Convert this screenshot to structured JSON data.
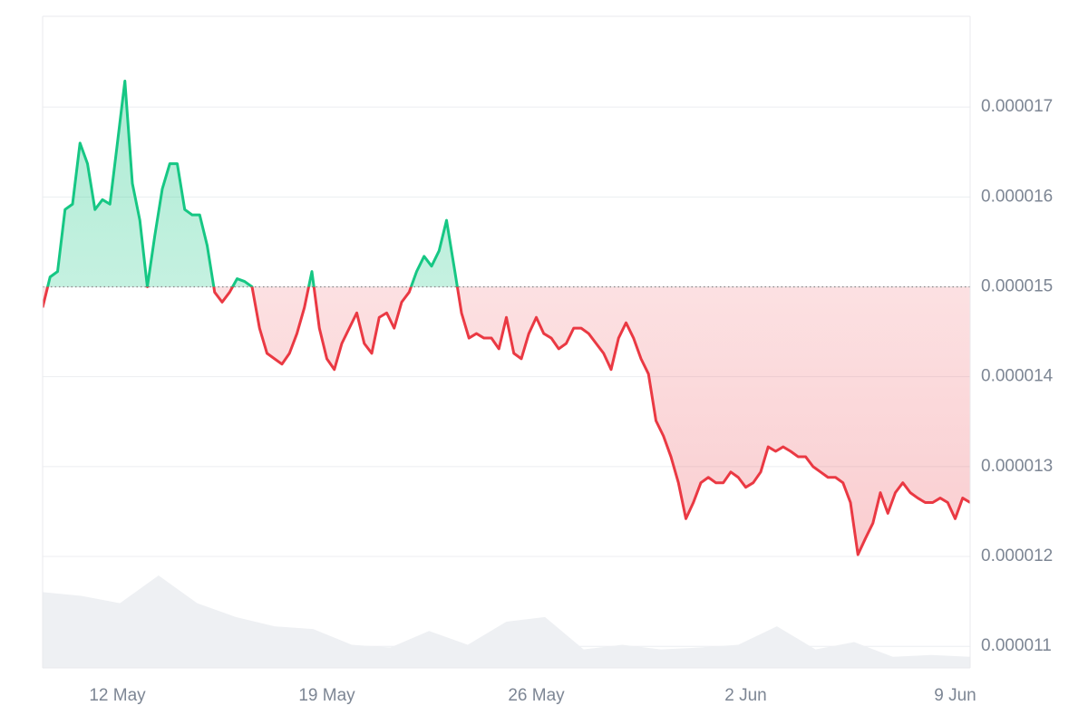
{
  "chart_data": {
    "type": "line",
    "series": [
      {
        "color_up": "#16c784",
        "color_down": "#ea3943",
        "values": [
          1.477e-05,
          1.511e-05,
          1.517e-05,
          1.586e-05,
          1.592e-05,
          1.66e-05,
          1.637e-05,
          1.586e-05,
          1.597e-05,
          1.592e-05,
          1.66e-05,
          1.729e-05,
          1.615e-05,
          1.574e-05,
          1.5e-05,
          1.557e-05,
          1.609e-05,
          1.637e-05,
          1.637e-05,
          1.586e-05,
          1.58e-05,
          1.58e-05,
          1.546e-05,
          1.494e-05,
          1.483e-05,
          1.494e-05,
          1.509e-05,
          1.506e-05,
          1.5e-05,
          1.454e-05,
          1.426e-05,
          1.42e-05,
          1.414e-05,
          1.426e-05,
          1.448e-05,
          1.477e-05,
          1.517e-05,
          1.454e-05,
          1.42e-05,
          1.408e-05,
          1.437e-05,
          1.454e-05,
          1.471e-05,
          1.437e-05,
          1.426e-05,
          1.466e-05,
          1.471e-05,
          1.454e-05,
          1.483e-05,
          1.494e-05,
          1.517e-05,
          1.534e-05,
          1.523e-05,
          1.54e-05,
          1.574e-05,
          1.523e-05,
          1.471e-05,
          1.443e-05,
          1.448e-05,
          1.443e-05,
          1.443e-05,
          1.431e-05,
          1.466e-05,
          1.426e-05,
          1.42e-05,
          1.448e-05,
          1.466e-05,
          1.448e-05,
          1.443e-05,
          1.431e-05,
          1.437e-05,
          1.454e-05,
          1.454e-05,
          1.448e-05,
          1.437e-05,
          1.426e-05,
          1.408e-05,
          1.443e-05,
          1.46e-05,
          1.443e-05,
          1.42e-05,
          1.403e-05,
          1.351e-05,
          1.334e-05,
          1.311e-05,
          1.282e-05,
          1.242e-05,
          1.26e-05,
          1.282e-05,
          1.288e-05,
          1.282e-05,
          1.282e-05,
          1.294e-05,
          1.288e-05,
          1.277e-05,
          1.282e-05,
          1.294e-05,
          1.322e-05,
          1.317e-05,
          1.322e-05,
          1.317e-05,
          1.311e-05,
          1.311e-05,
          1.3e-05,
          1.294e-05,
          1.288e-05,
          1.288e-05,
          1.282e-05,
          1.26e-05,
          1.202e-05,
          1.22e-05,
          1.237e-05,
          1.271e-05,
          1.248e-05,
          1.271e-05,
          1.282e-05,
          1.271e-05,
          1.265e-05,
          1.26e-05,
          1.26e-05,
          1.265e-05,
          1.26e-05,
          1.242e-05,
          1.265e-05,
          1.26e-05
        ]
      }
    ],
    "volume": {
      "color": "#eef0f3",
      "values": [
        82,
        78,
        70,
        100,
        70,
        55,
        45,
        42,
        25,
        22,
        40,
        25,
        50,
        55,
        20,
        25,
        20,
        22,
        25,
        45,
        20,
        28,
        12,
        14,
        12
      ]
    },
    "baseline": 1.5e-05,
    "xlim": [
      0,
      124
    ],
    "xticks": [
      {
        "value": 10,
        "label": "12 May"
      },
      {
        "value": 38,
        "label": "19 May"
      },
      {
        "value": 66,
        "label": "26 May"
      },
      {
        "value": 94,
        "label": "2 Jun"
      },
      {
        "value": 122,
        "label": "9 Jun"
      }
    ],
    "ylim": [
      1.076e-05,
      1.801e-05
    ],
    "yticks": [
      1.1e-05,
      1.2e-05,
      1.3e-05,
      1.4e-05,
      1.5e-05,
      1.6e-05,
      1.7e-05
    ],
    "grid": true
  }
}
